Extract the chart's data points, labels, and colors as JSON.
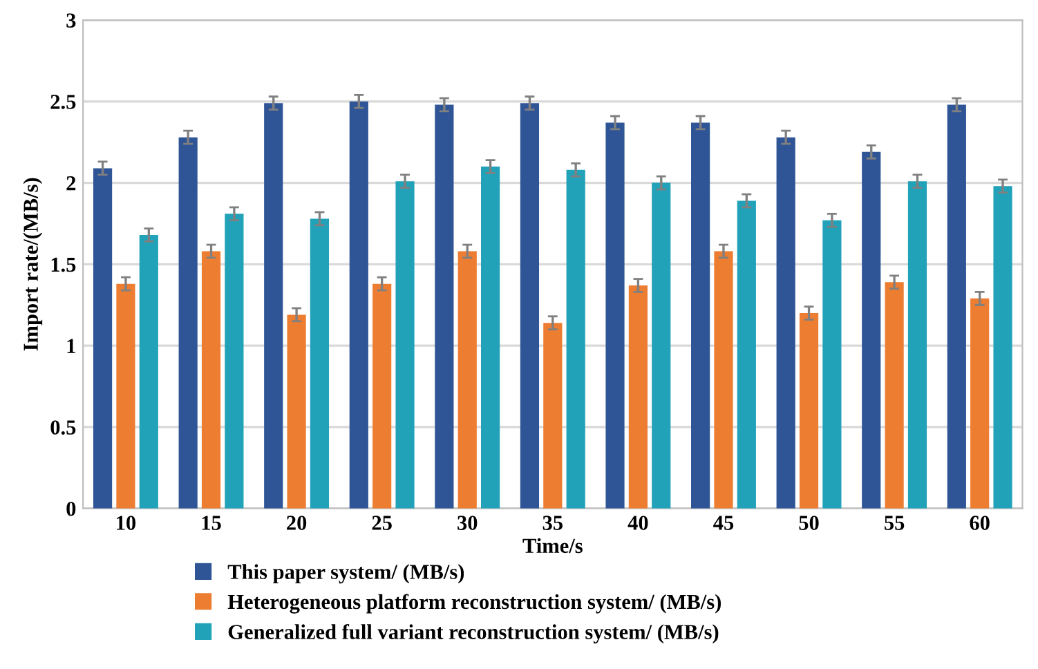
{
  "chart_data": {
    "type": "bar",
    "xlabel": "Time/s",
    "ylabel": "Import rate/(MB/s)",
    "categories": [
      "10",
      "15",
      "20",
      "25",
      "30",
      "35",
      "40",
      "45",
      "50",
      "55",
      "60"
    ],
    "series": [
      {
        "name": "This paper system/ (MB/s)",
        "color": "#2f5597",
        "values": [
          2.09,
          2.28,
          2.49,
          2.5,
          2.48,
          2.49,
          2.37,
          2.37,
          2.28,
          2.19,
          2.48
        ],
        "errors": [
          0.04,
          0.04,
          0.04,
          0.04,
          0.04,
          0.04,
          0.04,
          0.04,
          0.04,
          0.04,
          0.04
        ]
      },
      {
        "name": "Heterogeneous platform reconstruction system/ (MB/s)",
        "color": "#ed7d31",
        "values": [
          1.38,
          1.58,
          1.19,
          1.38,
          1.58,
          1.14,
          1.37,
          1.58,
          1.2,
          1.39,
          1.29
        ],
        "errors": [
          0.04,
          0.04,
          0.04,
          0.04,
          0.04,
          0.04,
          0.04,
          0.04,
          0.04,
          0.04,
          0.04
        ]
      },
      {
        "name": "Generalized full variant reconstruction system/ (MB/s)",
        "color": "#22a2b8",
        "values": [
          1.68,
          1.81,
          1.78,
          2.01,
          2.1,
          2.08,
          2.0,
          1.89,
          1.77,
          2.01,
          1.98
        ],
        "errors": [
          0.04,
          0.04,
          0.04,
          0.04,
          0.04,
          0.04,
          0.04,
          0.04,
          0.04,
          0.04,
          0.04
        ]
      }
    ],
    "ylim": [
      0,
      3
    ],
    "yticks": [
      0,
      0.5,
      1,
      1.5,
      2,
      2.5,
      3
    ],
    "grid": "y",
    "legend": "bottom"
  }
}
